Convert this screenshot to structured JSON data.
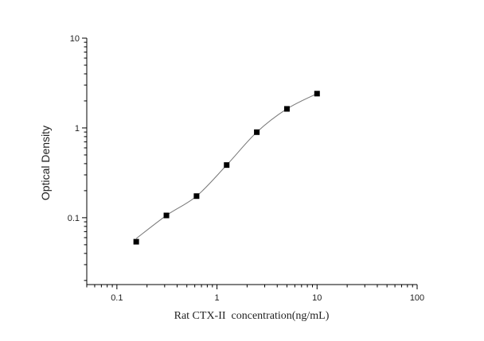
{
  "chart_data": {
    "type": "scatter",
    "title": "",
    "xlabel": "Rat CTX-II  concentration(ng/mL)",
    "ylabel": "Optical Density",
    "xscale": "log",
    "yscale": "log",
    "xlim": [
      0.05,
      100
    ],
    "ylim": [
      0.018,
      10
    ],
    "xticks": [
      0.1,
      1,
      10,
      100
    ],
    "xtick_labels": [
      "0.1",
      "1",
      "10",
      "100"
    ],
    "yticks": [
      0.1,
      1,
      10
    ],
    "ytick_labels": [
      "0.1",
      "1",
      "10"
    ],
    "grid": false,
    "legend": "none",
    "marker": "square",
    "fit_line": "smooth curve through points",
    "colors": {
      "points": "#000000",
      "curve": "#777777",
      "axes": "#000000"
    },
    "x": [
      0.156,
      0.3125,
      0.625,
      1.25,
      2.5,
      5,
      10
    ],
    "y": [
      0.054,
      0.106,
      0.174,
      0.386,
      0.897,
      1.63,
      2.41
    ]
  }
}
